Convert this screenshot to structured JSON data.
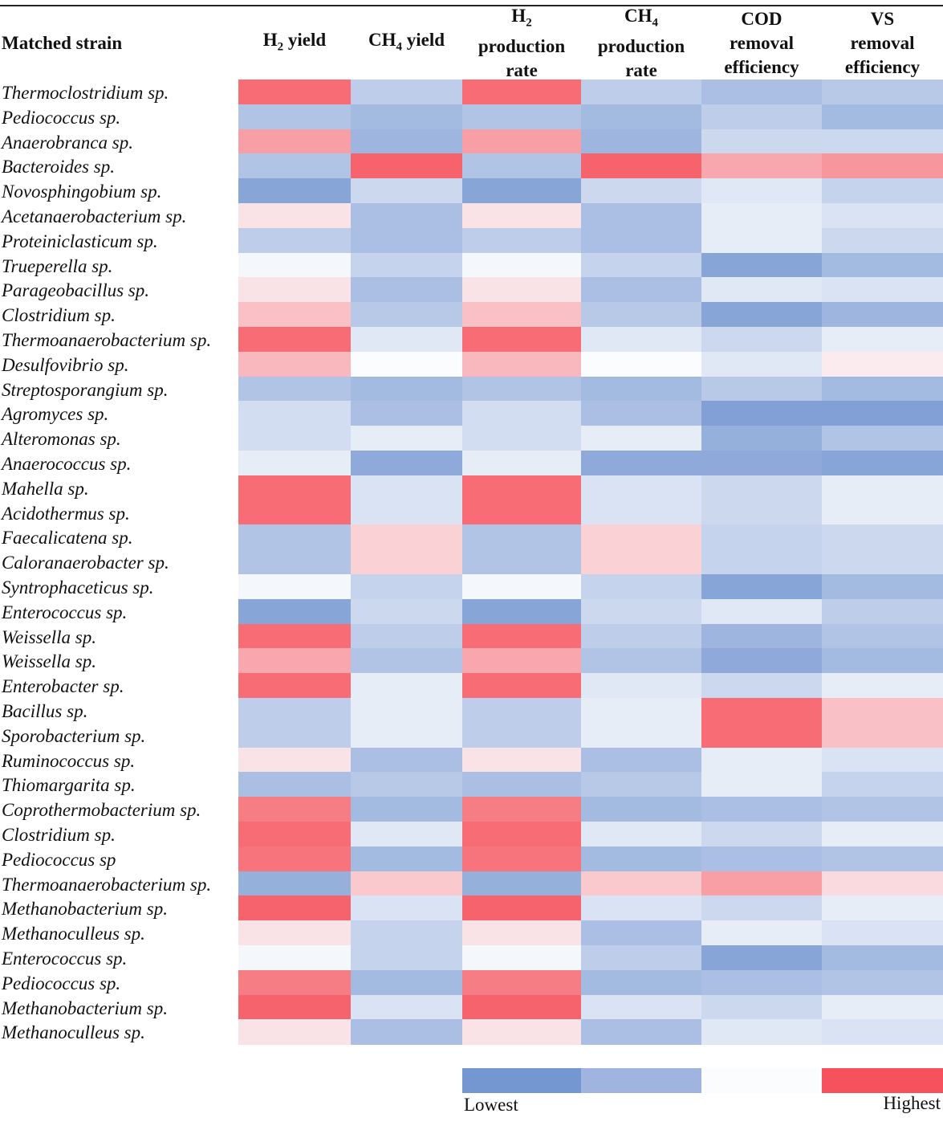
{
  "header": {
    "strain_label": "Matched strain",
    "columns": [
      {
        "main": "H",
        "sub": "2",
        "rest": " yield"
      },
      {
        "main": "CH",
        "sub": "4",
        "rest": " yield"
      },
      {
        "main": "H",
        "sub": "2",
        "rest": "production rate"
      },
      {
        "main": "CH",
        "sub": "4",
        "rest": "production rate"
      },
      {
        "main": "COD",
        "sub": "",
        "rest": "removal efficiency"
      },
      {
        "main": "VS",
        "sub": "",
        "rest": "removal efficiency"
      }
    ]
  },
  "legend": {
    "low_label": "Lowest",
    "high_label": "Highest",
    "swatch_colors": [
      "#7496d1",
      "#9fb4de",
      "#fbfcfe",
      "#f6525d"
    ]
  },
  "chart_data": {
    "type": "heatmap",
    "scale": "diverging blue (lowest) - white - red (highest), value range -1 to 1",
    "columns": [
      "H2 yield",
      "CH4 yield",
      "H2 production rate",
      "CH4 production rate",
      "COD removal efficiency",
      "VS removal efficiency"
    ],
    "rows": [
      {
        "strain": "Thermoclostridium sp.",
        "values": [
          0.85,
          -0.45,
          0.85,
          -0.45,
          -0.6,
          -0.5
        ],
        "merge": [
          1,
          1,
          1,
          1,
          1,
          1
        ]
      },
      {
        "strain": "Pediococcus sp.",
        "values": [
          -0.55,
          -0.65,
          -0.55,
          -0.65,
          -0.45,
          -0.65
        ],
        "merge": [
          1,
          1,
          1,
          1,
          1,
          1
        ]
      },
      {
        "strain": "Anaerobranca sp.",
        "values": [
          0.55,
          -0.7,
          0.55,
          -0.7,
          -0.35,
          -0.35
        ],
        "merge": [
          1,
          1,
          1,
          1,
          1,
          1
        ]
      },
      {
        "strain": "Bacteroides sp.",
        "values": [
          -0.55,
          0.9,
          -0.55,
          0.9,
          0.5,
          0.6
        ],
        "merge": [
          1,
          1,
          1,
          1,
          1,
          1
        ]
      },
      {
        "strain": "Novosphingobium sp.",
        "values": [
          -0.85,
          -0.35,
          -0.85,
          -0.35,
          -0.2,
          -0.4
        ],
        "merge": [
          1,
          1,
          1,
          1,
          1,
          1
        ]
      },
      {
        "strain": "Acetanaerobacterium sp.",
        "values": [
          0.15,
          -0.6,
          0.15,
          -0.6,
          -0.15,
          -0.25
        ],
        "merge": [
          1,
          1,
          1,
          1,
          1,
          1
        ]
      },
      {
        "strain": "Proteiniclasticum sp.",
        "values": [
          -0.45,
          -0.6,
          -0.45,
          -0.6,
          -0.15,
          -0.35
        ],
        "merge": [
          1,
          1,
          1,
          1,
          1,
          1
        ]
      },
      {
        "strain": "Trueperella sp.",
        "values": [
          -0.05,
          -0.4,
          -0.05,
          -0.4,
          -0.85,
          -0.65
        ],
        "merge": [
          1,
          1,
          1,
          1,
          1,
          1
        ]
      },
      {
        "strain": "Parageobacillus sp.",
        "values": [
          0.15,
          -0.6,
          0.15,
          -0.6,
          -0.2,
          -0.25
        ],
        "merge": [
          1,
          1,
          1,
          1,
          1,
          1
        ]
      },
      {
        "strain": "Clostridium sp.",
        "values": [
          0.35,
          -0.5,
          0.35,
          -0.5,
          -0.85,
          -0.7
        ],
        "merge": [
          1,
          1,
          1,
          1,
          1,
          1
        ]
      },
      {
        "strain": "Thermoanaerobacterium sp.",
        "values": [
          0.85,
          -0.2,
          0.85,
          -0.2,
          -0.35,
          -0.15
        ],
        "merge": [
          1,
          1,
          1,
          1,
          1,
          1
        ]
      },
      {
        "strain": "Desulfovibrio sp.",
        "values": [
          0.4,
          0.0,
          0.4,
          0.0,
          -0.2,
          0.1
        ],
        "merge": [
          1,
          1,
          1,
          1,
          1,
          1
        ]
      },
      {
        "strain": "Streptosporangium sp.",
        "values": [
          -0.55,
          -0.65,
          -0.55,
          -0.65,
          -0.5,
          -0.65
        ],
        "merge": [
          1,
          1,
          1,
          1,
          1,
          1
        ]
      },
      {
        "strain": "Agromyces sp.",
        "values": [
          -0.3,
          -0.6,
          -0.3,
          -0.6,
          -0.9,
          -0.9
        ],
        "merge": [
          2,
          1,
          2,
          1,
          1,
          1
        ]
      },
      {
        "strain": "Alteromonas sp.",
        "values": [
          -0.35,
          -0.15,
          -0.35,
          -0.15,
          -0.75,
          -0.55
        ],
        "merge": [
          0,
          1,
          0,
          1,
          1,
          1
        ]
      },
      {
        "strain": "Anaerococcus sp.",
        "values": [
          -0.15,
          -0.8,
          -0.15,
          -0.8,
          -0.8,
          -0.85
        ],
        "merge": [
          1,
          1,
          1,
          1,
          1,
          1
        ]
      },
      {
        "strain": "Mahella sp.",
        "values": [
          0.85,
          -0.25,
          0.85,
          -0.25,
          -0.35,
          -0.15
        ],
        "merge": [
          2,
          2,
          2,
          2,
          2,
          2
        ]
      },
      {
        "strain": "Acidothermus sp.",
        "values": [
          0.85,
          -0.25,
          0.85,
          -0.25,
          -0.35,
          -0.15
        ],
        "merge": [
          0,
          0,
          0,
          0,
          0,
          0
        ]
      },
      {
        "strain": "Faecalicatena sp.",
        "values": [
          -0.55,
          0.25,
          -0.55,
          0.25,
          -0.4,
          -0.35
        ],
        "merge": [
          2,
          2,
          2,
          2,
          2,
          2
        ]
      },
      {
        "strain": "Caloranaerobacter sp.",
        "values": [
          -0.55,
          0.25,
          -0.55,
          0.25,
          -0.4,
          -0.35
        ],
        "merge": [
          0,
          0,
          0,
          0,
          0,
          0
        ]
      },
      {
        "strain": "Syntrophaceticus sp.",
        "values": [
          -0.05,
          -0.4,
          -0.05,
          -0.4,
          -0.85,
          -0.65
        ],
        "merge": [
          1,
          1,
          1,
          1,
          1,
          1
        ]
      },
      {
        "strain": "Enterococcus sp.",
        "values": [
          -0.85,
          -0.35,
          -0.85,
          -0.35,
          -0.2,
          -0.45
        ],
        "merge": [
          1,
          1,
          1,
          1,
          1,
          1
        ]
      },
      {
        "strain": "Weissella sp.",
        "values": [
          0.85,
          -0.45,
          0.85,
          -0.45,
          -0.7,
          -0.55
        ],
        "merge": [
          1,
          1,
          1,
          1,
          1,
          1
        ]
      },
      {
        "strain": "Weissella sp.",
        "values": [
          0.5,
          -0.55,
          0.5,
          -0.55,
          -0.8,
          -0.65
        ],
        "merge": [
          1,
          1,
          1,
          1,
          1,
          1
        ]
      },
      {
        "strain": "Enterobacter sp.",
        "values": [
          0.85,
          -0.15,
          0.85,
          -0.2,
          -0.35,
          -0.15
        ],
        "merge": [
          1,
          1,
          1,
          1,
          1,
          1
        ]
      },
      {
        "strain": "Bacillus sp.",
        "values": [
          -0.45,
          -0.15,
          -0.45,
          -0.15,
          0.85,
          0.35
        ],
        "merge": [
          2,
          2,
          2,
          2,
          2,
          2
        ]
      },
      {
        "strain": "Sporobacterium sp.",
        "values": [
          -0.45,
          -0.15,
          -0.45,
          -0.15,
          0.85,
          0.35
        ],
        "merge": [
          0,
          0,
          0,
          0,
          0,
          0
        ]
      },
      {
        "strain": "Ruminococcus sp.",
        "values": [
          0.15,
          -0.6,
          0.15,
          -0.6,
          -0.15,
          -0.25
        ],
        "merge": [
          1,
          1,
          1,
          1,
          2,
          1
        ]
      },
      {
        "strain": "Thiomargarita sp.",
        "values": [
          -0.6,
          -0.5,
          -0.6,
          -0.5,
          -0.15,
          -0.4
        ],
        "merge": [
          1,
          1,
          1,
          1,
          0,
          1
        ]
      },
      {
        "strain": "Coprothermobacterium sp.",
        "values": [
          0.75,
          -0.65,
          0.75,
          -0.65,
          -0.6,
          -0.55
        ],
        "merge": [
          1,
          1,
          1,
          1,
          1,
          1
        ]
      },
      {
        "strain": "Clostridium sp.",
        "values": [
          0.85,
          -0.2,
          0.85,
          -0.2,
          -0.35,
          -0.15
        ],
        "merge": [
          1,
          1,
          1,
          1,
          1,
          1
        ]
      },
      {
        "strain": "Pediococcus sp",
        "values": [
          0.8,
          -0.65,
          0.8,
          -0.65,
          -0.6,
          -0.55
        ],
        "merge": [
          1,
          1,
          1,
          1,
          1,
          1
        ]
      },
      {
        "strain": "Thermoanaerobacterium sp.",
        "values": [
          -0.75,
          0.3,
          -0.75,
          0.3,
          0.55,
          0.2
        ],
        "merge": [
          1,
          1,
          1,
          1,
          1,
          1
        ]
      },
      {
        "strain": "Methanobacterium sp.",
        "values": [
          0.9,
          -0.25,
          0.9,
          -0.25,
          -0.35,
          -0.15
        ],
        "merge": [
          1,
          1,
          1,
          1,
          1,
          1
        ]
      },
      {
        "strain": "Methanoculleus sp.",
        "values": [
          0.15,
          -0.4,
          0.15,
          -0.6,
          -0.15,
          -0.25
        ],
        "merge": [
          1,
          2,
          1,
          1,
          1,
          1
        ]
      },
      {
        "strain": "Enterococcus sp.",
        "values": [
          -0.05,
          -0.4,
          -0.05,
          -0.45,
          -0.85,
          -0.65
        ],
        "merge": [
          1,
          0,
          1,
          1,
          1,
          1
        ]
      },
      {
        "strain": "Pediococcus sp.",
        "values": [
          0.75,
          -0.65,
          0.75,
          -0.65,
          -0.6,
          -0.55
        ],
        "merge": [
          1,
          1,
          1,
          1,
          1,
          1
        ]
      },
      {
        "strain": "Methanobacterium sp.",
        "values": [
          0.9,
          -0.25,
          0.9,
          -0.25,
          -0.35,
          -0.15
        ],
        "merge": [
          1,
          1,
          1,
          1,
          1,
          1
        ]
      },
      {
        "strain": "Methanoculleus sp.",
        "values": [
          0.15,
          -0.6,
          0.15,
          -0.6,
          -0.2,
          -0.25
        ],
        "merge": [
          1,
          1,
          1,
          1,
          1,
          1
        ]
      }
    ]
  }
}
